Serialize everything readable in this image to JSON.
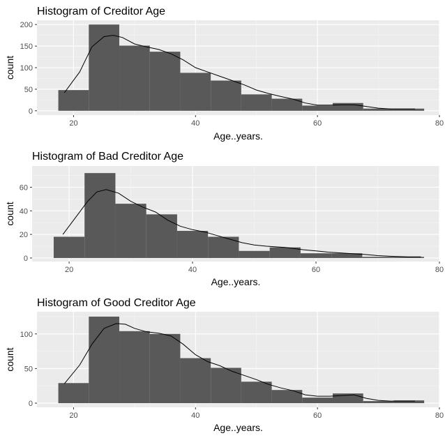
{
  "chart_data": [
    {
      "type": "bar",
      "title": "Histogram of Creditor Age",
      "xlabel": "Age..years.",
      "ylabel": "count",
      "bin_width": 5,
      "bins_start": [
        17.5,
        22.5,
        27.5,
        32.5,
        37.5,
        42.5,
        47.5,
        52.5,
        57.5,
        62.5,
        67.5,
        72.5
      ],
      "values": [
        48,
        200,
        151,
        137,
        88,
        70,
        38,
        28,
        12,
        18,
        5,
        5
      ],
      "density_curve": {
        "x": [
          18.5,
          21,
          23,
          25,
          26.5,
          28,
          30,
          32,
          34,
          36,
          38,
          40,
          42,
          44,
          46,
          48,
          50,
          52,
          54,
          56,
          58,
          60,
          62,
          64,
          66,
          68,
          70,
          72,
          74,
          76
        ],
        "y": [
          42,
          90,
          148,
          172,
          175,
          170,
          155,
          148,
          142,
          132,
          118,
          100,
          90,
          80,
          70,
          60,
          48,
          40,
          33,
          27,
          18,
          13,
          13,
          14,
          14,
          10,
          6,
          4,
          4,
          4
        ]
      },
      "xlim": [
        14,
        80
      ],
      "ylim": [
        -10,
        210
      ],
      "xticks": [
        20,
        40,
        60,
        80
      ],
      "yticks": [
        0,
        50,
        100,
        150,
        200
      ],
      "grid": true
    },
    {
      "type": "bar",
      "title": "Histogram of Bad Creditor Age",
      "xlabel": "Age..years.",
      "ylabel": "count",
      "bin_width": 5,
      "bins_start": [
        17.5,
        22.5,
        27.5,
        32.5,
        37.5,
        42.5,
        47.5,
        52.5,
        57.5,
        62.5,
        67.5,
        72.5
      ],
      "values": [
        18,
        72,
        46,
        37,
        23,
        18,
        6,
        9,
        4,
        4,
        1,
        1
      ],
      "density_curve": {
        "x": [
          19,
          21,
          23,
          24.5,
          26,
          28,
          30,
          32,
          34,
          36,
          38,
          40,
          42,
          44,
          46,
          48,
          50,
          52,
          55,
          58,
          60,
          62,
          65,
          68,
          70,
          72,
          75,
          77
        ],
        "y": [
          20,
          34,
          48,
          56,
          58,
          55,
          48,
          43,
          39,
          32,
          27,
          24,
          22,
          19,
          16,
          13,
          11,
          10,
          9,
          7,
          6,
          5,
          4,
          3,
          2,
          1.5,
          1,
          1
        ]
      },
      "xlim": [
        14,
        80
      ],
      "ylim": [
        -3,
        78
      ],
      "xticks": [
        20,
        40,
        60,
        80
      ],
      "yticks": [
        0,
        20,
        40,
        60
      ],
      "grid": true
    },
    {
      "type": "bar",
      "title": "Histogram of Good Creditor Age",
      "xlabel": "Age..years.",
      "ylabel": "count",
      "bin_width": 5,
      "bins_start": [
        17.5,
        22.5,
        27.5,
        32.5,
        37.5,
        42.5,
        47.5,
        52.5,
        57.5,
        62.5,
        67.5,
        72.5
      ],
      "values": [
        29,
        125,
        104,
        100,
        65,
        51,
        31,
        19,
        8,
        14,
        3,
        4
      ],
      "density_curve": {
        "x": [
          18.5,
          21,
          23,
          25,
          27,
          28.5,
          30,
          32,
          34,
          36,
          38,
          40,
          42,
          44,
          46,
          48,
          50,
          52,
          54,
          56,
          58,
          60,
          62,
          64,
          66,
          68,
          70,
          72,
          74,
          76
        ],
        "y": [
          28,
          55,
          85,
          108,
          115,
          114,
          108,
          103,
          101,
          97,
          85,
          70,
          60,
          54,
          46,
          40,
          34,
          27,
          22,
          18,
          12,
          10,
          10,
          11,
          12,
          7,
          4,
          3,
          3,
          3
        ]
      },
      "xlim": [
        14,
        80
      ],
      "ylim": [
        -6,
        132
      ],
      "xticks": [
        20,
        40,
        60,
        80
      ],
      "yticks": [
        0,
        50,
        100
      ],
      "grid": true
    }
  ]
}
